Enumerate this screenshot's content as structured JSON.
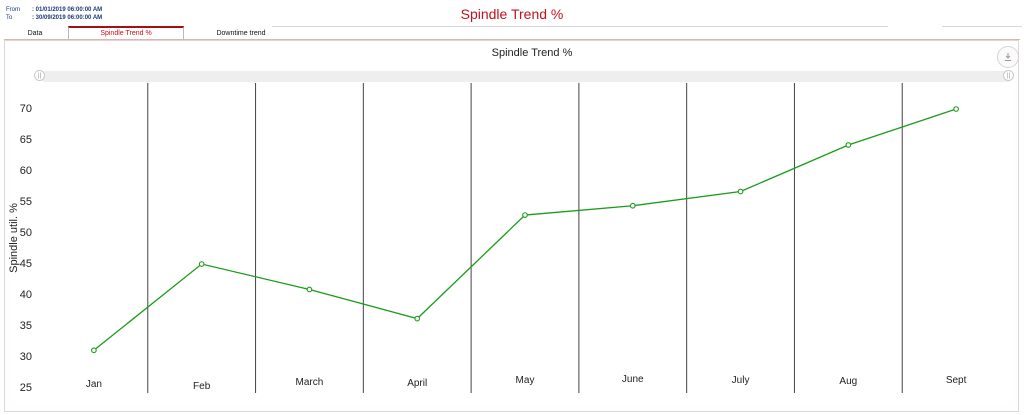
{
  "header": {
    "from_label": "From",
    "from_value": ": 01/01/2019 06:00:00 AM",
    "to_label": "To",
    "to_value": ": 30/09/2019 06:00:00 AM",
    "page_title": "Spindle Trend %"
  },
  "tabs": [
    {
      "label": "Data",
      "active": false
    },
    {
      "label": "Spindle Trend %",
      "active": true
    },
    {
      "label": "Downtime trend",
      "active": false
    }
  ],
  "toolbar": {
    "download_icon": "download-icon"
  },
  "colors": {
    "title": "#c0121b",
    "series": "#1a9c1a",
    "grid": "#444444"
  },
  "chart_data": {
    "type": "line",
    "title": "Spindle Trend %",
    "ylabel": "Spindle util. %",
    "xlabel": "",
    "categories": [
      "Jan",
      "Feb",
      "March",
      "April",
      "May",
      "June",
      "July",
      "Aug",
      "Sept"
    ],
    "series": [
      {
        "values": [
          30.9,
          44.8,
          40.7,
          36.0,
          52.7,
          54.2,
          56.5,
          64.0,
          69.8
        ]
      }
    ],
    "y_ticks": [
      25,
      30,
      35,
      40,
      45,
      50,
      55,
      60,
      65,
      70
    ],
    "ylim": [
      24,
      74
    ],
    "grid": true,
    "legend": "none"
  }
}
